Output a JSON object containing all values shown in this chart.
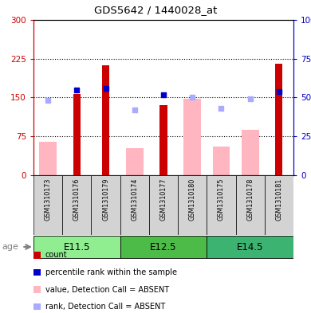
{
  "title": "GDS5642 / 1440028_at",
  "samples": [
    "GSM1310173",
    "GSM1310176",
    "GSM1310179",
    "GSM1310174",
    "GSM1310177",
    "GSM1310180",
    "GSM1310175",
    "GSM1310178",
    "GSM1310181"
  ],
  "age_groups": [
    {
      "label": "E11.5",
      "start": 0,
      "end": 3,
      "color": "#90EE90"
    },
    {
      "label": "E12.5",
      "start": 3,
      "end": 6,
      "color": "#4CBB47"
    },
    {
      "label": "E14.5",
      "start": 6,
      "end": 9,
      "color": "#3CB371"
    }
  ],
  "count_values": [
    0,
    157,
    213,
    0,
    135,
    0,
    0,
    0,
    215
  ],
  "count_color": "#CC0000",
  "rank_pct_values": [
    null,
    55,
    56,
    null,
    52,
    null,
    null,
    null,
    54
  ],
  "rank_color": "#0000CC",
  "absent_value_values": [
    65,
    0,
    0,
    52,
    0,
    147,
    55,
    87,
    0
  ],
  "absent_value_color": "#FFB6C1",
  "absent_rank_pct_values": [
    48,
    0,
    0,
    42,
    0,
    50,
    43,
    49,
    0
  ],
  "absent_rank_color": "#AAAAFF",
  "ylim_left": [
    0,
    300
  ],
  "ylim_right": [
    0,
    100
  ],
  "yticks_left": [
    0,
    75,
    150,
    225,
    300
  ],
  "yticks_right": [
    0,
    25,
    50,
    75,
    100
  ],
  "tick_label_color_left": "#CC0000",
  "tick_label_color_right": "#0000CC",
  "sample_bg_color": "#D3D3D3",
  "age_group_colors": [
    "#90EE90",
    "#4CBB47",
    "#3CB371"
  ]
}
